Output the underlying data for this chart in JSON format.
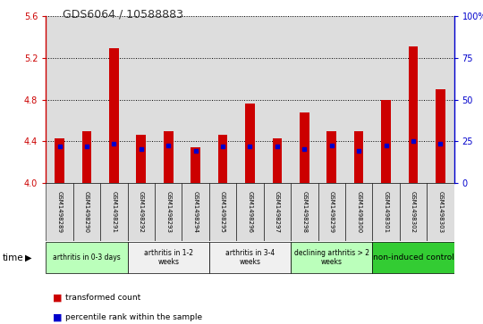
{
  "title": "GDS6064 / 10588883",
  "samples": [
    "GSM1498289",
    "GSM1498290",
    "GSM1498291",
    "GSM1498292",
    "GSM1498293",
    "GSM1498294",
    "GSM1498295",
    "GSM1498296",
    "GSM1498297",
    "GSM1498298",
    "GSM1498299",
    "GSM1498300",
    "GSM1498301",
    "GSM1498302",
    "GSM1498303"
  ],
  "bar_values": [
    4.43,
    4.5,
    5.29,
    4.46,
    4.5,
    4.34,
    4.46,
    4.76,
    4.43,
    4.68,
    4.5,
    4.5,
    4.8,
    5.31,
    4.9
  ],
  "percentile_values": [
    4.35,
    4.35,
    4.38,
    4.33,
    4.36,
    4.31,
    4.35,
    4.35,
    4.35,
    4.33,
    4.36,
    4.31,
    4.36,
    4.4,
    4.38
  ],
  "y_min": 4.0,
  "y_max": 5.6,
  "y_ticks": [
    4.0,
    4.4,
    4.8,
    5.2,
    5.6
  ],
  "right_y_ticks": [
    0,
    25,
    50,
    75,
    100
  ],
  "right_y_tick_labels": [
    "0",
    "25",
    "50",
    "75",
    "100%"
  ],
  "bar_color": "#CC0000",
  "percentile_color": "#0000CC",
  "bar_bottom": 4.0,
  "groups": [
    {
      "label": "arthritis in 0-3 days",
      "start": 0,
      "end": 3,
      "color": "#bbffbb"
    },
    {
      "label": "arthritis in 1-2\nweeks",
      "start": 3,
      "end": 6,
      "color": "#f0f0f0"
    },
    {
      "label": "arthritis in 3-4\nweeks",
      "start": 6,
      "end": 9,
      "color": "#f0f0f0"
    },
    {
      "label": "declining arthritis > 2\nweeks",
      "start": 9,
      "end": 12,
      "color": "#bbffbb"
    },
    {
      "label": "non-induced control",
      "start": 12,
      "end": 15,
      "color": "#33cc33"
    }
  ],
  "title_color": "#333333",
  "left_axis_color": "#CC0000",
  "right_axis_color": "#0000CC",
  "grid_color": "#000000",
  "bar_width": 0.35,
  "col_bg_color": "#dddddd",
  "legend_red": "transformed count",
  "legend_blue": "percentile rank within the sample"
}
